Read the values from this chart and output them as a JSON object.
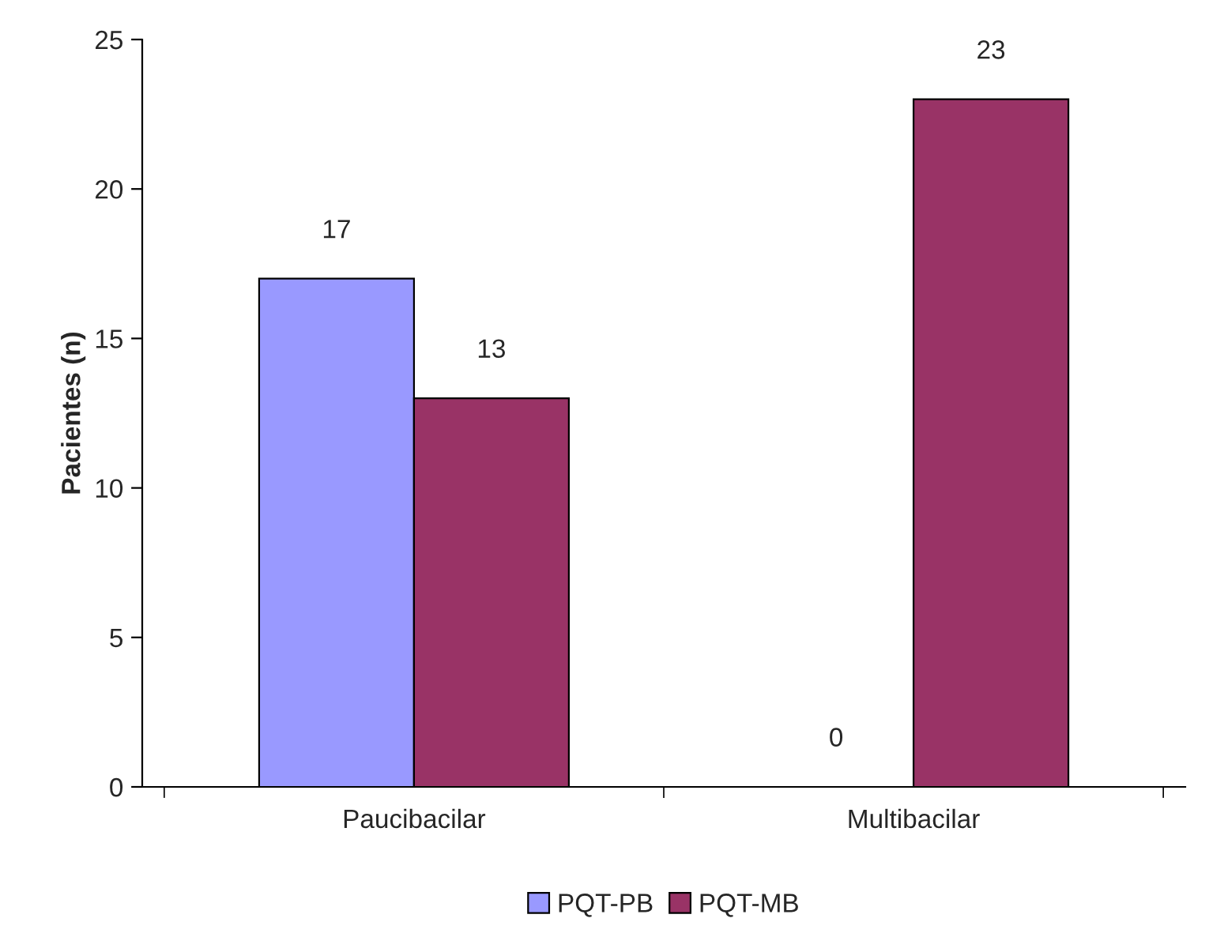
{
  "chart_data": {
    "type": "bar",
    "ylabel": "Pacientes (n)",
    "categories": [
      "Paucibacilar",
      "Multibacilar"
    ],
    "series": [
      {
        "name": "PQT-PB",
        "color": "#9999ff",
        "values": [
          17,
          0
        ]
      },
      {
        "name": "PQT-MB",
        "color": "#993366",
        "values": [
          13,
          23
        ]
      }
    ],
    "ylim": [
      0,
      25
    ],
    "yticks": [
      0,
      5,
      10,
      15,
      20,
      25
    ],
    "data_labels": true,
    "grid": false,
    "legend": "bottom"
  }
}
